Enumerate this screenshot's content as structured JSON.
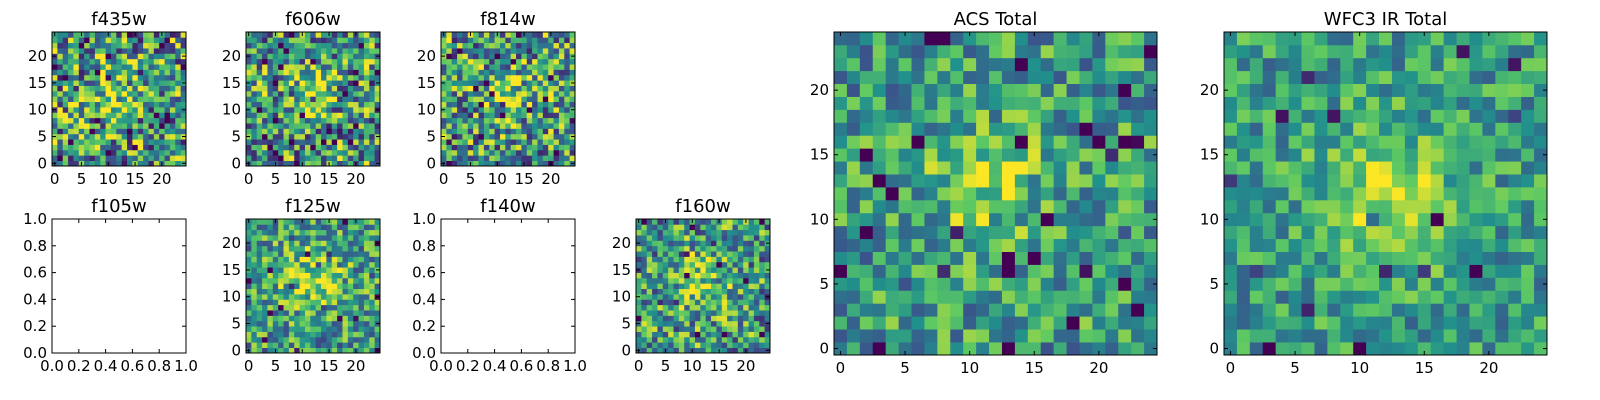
{
  "figure": {
    "background": "#ffffff",
    "colormap": "viridis",
    "colormap_stops": [
      "#440154",
      "#3b528b",
      "#21918c",
      "#5ec962",
      "#fde725"
    ]
  },
  "chart_data": [
    {
      "type": "heatmap",
      "title": "f435w",
      "grid": [
        25,
        25
      ],
      "xlim": [
        -0.5,
        24.5
      ],
      "ylim": [
        -0.5,
        24.5
      ],
      "xticks": [
        "0",
        "5",
        "10",
        "15",
        "20"
      ],
      "yticks": [
        "0",
        "5",
        "10",
        "15",
        "20"
      ],
      "peak": [
        11,
        12
      ],
      "peak_sigma": 3.0,
      "peak_strength": 0.25,
      "noise_level": 0.95,
      "dark_fraction": 0.06,
      "seed": 11
    },
    {
      "type": "heatmap",
      "title": "f606w",
      "grid": [
        25,
        25
      ],
      "xlim": [
        -0.5,
        24.5
      ],
      "ylim": [
        -0.5,
        24.5
      ],
      "xticks": [
        "0",
        "5",
        "10",
        "15",
        "20"
      ],
      "yticks": [
        "0",
        "5",
        "10",
        "15",
        "20"
      ],
      "peak": [
        11,
        13
      ],
      "peak_sigma": 3.0,
      "peak_strength": 0.3,
      "noise_level": 0.9,
      "dark_fraction": 0.06,
      "seed": 23
    },
    {
      "type": "heatmap",
      "title": "f814w",
      "grid": [
        25,
        25
      ],
      "xlim": [
        -0.5,
        24.5
      ],
      "ylim": [
        -0.5,
        24.5
      ],
      "xticks": [
        "0",
        "5",
        "10",
        "15",
        "20"
      ],
      "yticks": [
        "0",
        "5",
        "10",
        "15",
        "20"
      ],
      "peak": [
        12,
        13
      ],
      "peak_sigma": 3.0,
      "peak_strength": 0.3,
      "noise_level": 0.9,
      "dark_fraction": 0.06,
      "seed": 37
    },
    {
      "type": "empty",
      "title": "f105w",
      "xlim": [
        0,
        1
      ],
      "ylim": [
        0,
        1
      ],
      "xticks": [
        "0.0",
        "0.2",
        "0.4",
        "0.6",
        "0.8",
        "1.0"
      ],
      "yticks": [
        "0.0",
        "0.2",
        "0.4",
        "0.6",
        "0.8",
        "1.0"
      ]
    },
    {
      "type": "heatmap",
      "title": "f125w",
      "grid": [
        25,
        25
      ],
      "xlim": [
        -0.5,
        24.5
      ],
      "ylim": [
        -0.5,
        24.5
      ],
      "xticks": [
        "0",
        "5",
        "10",
        "15",
        "20"
      ],
      "yticks": [
        "0",
        "5",
        "10",
        "15",
        "20"
      ],
      "peak": [
        12,
        13
      ],
      "peak_sigma": 4.0,
      "peak_strength": 0.3,
      "noise_level": 0.7,
      "dark_fraction": 0.04,
      "seed": 41
    },
    {
      "type": "empty",
      "title": "f140w",
      "xlim": [
        0,
        1
      ],
      "ylim": [
        0,
        1
      ],
      "xticks": [
        "0.0",
        "0.2",
        "0.4",
        "0.6",
        "0.8",
        "1.0"
      ],
      "yticks": [
        "0.0",
        "0.2",
        "0.4",
        "0.6",
        "0.8",
        "1.0"
      ]
    },
    {
      "type": "heatmap",
      "title": "f160w",
      "grid": [
        25,
        25
      ],
      "xlim": [
        -0.5,
        24.5
      ],
      "ylim": [
        -0.5,
        24.5
      ],
      "xticks": [
        "0",
        "5",
        "10",
        "15",
        "20"
      ],
      "yticks": [
        "0",
        "5",
        "10",
        "15",
        "20"
      ],
      "peak": [
        12,
        12
      ],
      "peak_sigma": 4.0,
      "peak_strength": 0.25,
      "noise_level": 0.8,
      "dark_fraction": 0.06,
      "seed": 53
    },
    {
      "type": "heatmap",
      "title": "ACS Total",
      "grid": [
        25,
        25
      ],
      "xlim": [
        -0.5,
        24.5
      ],
      "ylim": [
        -0.5,
        24.5
      ],
      "xticks": [
        "0",
        "5",
        "10",
        "15",
        "20"
      ],
      "yticks": [
        "0",
        "5",
        "10",
        "15",
        "20"
      ],
      "peak": [
        11,
        13
      ],
      "peak_sigma": 3.0,
      "peak_strength": 0.3,
      "noise_level": 0.6,
      "dark_fraction": 0.035,
      "seed": 67
    },
    {
      "type": "heatmap",
      "title": "WFC3 IR Total",
      "grid": [
        25,
        25
      ],
      "xlim": [
        -0.5,
        24.5
      ],
      "ylim": [
        -0.5,
        24.5
      ],
      "xticks": [
        "0",
        "5",
        "10",
        "15",
        "20"
      ],
      "yticks": [
        "0",
        "5",
        "10",
        "15",
        "20"
      ],
      "peak": [
        12,
        12
      ],
      "peak_sigma": 3.5,
      "peak_strength": 0.35,
      "noise_level": 0.5,
      "dark_fraction": 0.03,
      "seed": 79
    }
  ]
}
